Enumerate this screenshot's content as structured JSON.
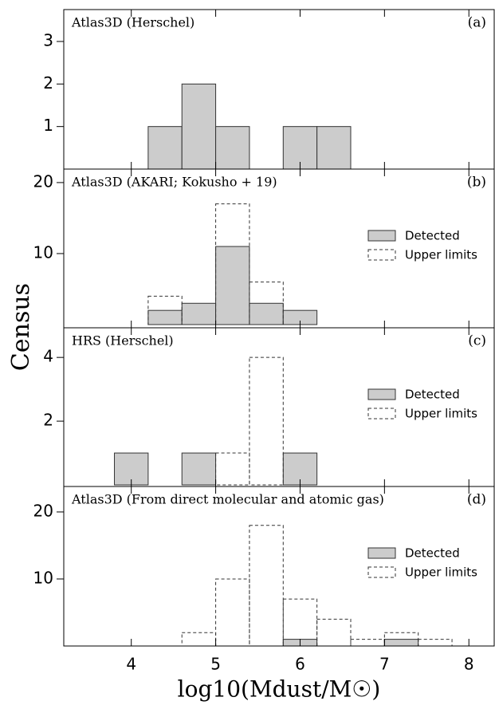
{
  "axis_labels": {
    "x": "log10(Mdust/M☉)",
    "y": "Census"
  },
  "chart_data": [
    {
      "type": "histogram",
      "title": "Atlas3D (Herschel)",
      "panel": "(a)",
      "bins": [
        4.2,
        4.6,
        5.0,
        5.4,
        5.8,
        6.2,
        6.6
      ],
      "series": [
        {
          "name": "Detected",
          "color": "#cccccc",
          "values": [
            1,
            2,
            1,
            0,
            1,
            1
          ]
        }
      ],
      "xlim": [
        3.2,
        8.3
      ],
      "xticks": [
        4,
        5,
        6,
        7,
        8
      ],
      "ylim": [
        0,
        3.75
      ],
      "yticks": [
        1,
        2,
        3
      ],
      "legend": "none"
    },
    {
      "type": "histogram",
      "title": "Atlas3D (AKARI; Kokusho + 19)",
      "panel": "(b)",
      "bins": [
        4.2,
        4.6,
        5.0,
        5.4,
        5.8,
        6.2
      ],
      "series": [
        {
          "name": "Detected",
          "color": "#cccccc",
          "values": [
            2,
            3,
            11,
            3,
            2
          ]
        },
        {
          "name": "Upper limits",
          "color": "#333333",
          "linestyle": "dashed",
          "values": [
            4,
            0,
            17,
            6,
            0
          ]
        }
      ],
      "xlim": [
        3.2,
        8.3
      ],
      "xticks": [
        4,
        5,
        6,
        7,
        8
      ],
      "ylim": [
        -0.45,
        21.9
      ],
      "yticks": [
        10,
        20
      ],
      "legend": "right"
    },
    {
      "type": "histogram",
      "title": "HRS (Herschel)",
      "panel": "(c)",
      "bins": [
        3.8,
        4.2,
        4.6,
        5.0,
        5.4,
        5.8,
        6.2
      ],
      "series": [
        {
          "name": "Detected",
          "color": "#cccccc",
          "values": [
            1,
            0,
            1,
            0,
            0,
            1
          ]
        },
        {
          "name": "Upper limits",
          "color": "#333333",
          "linestyle": "dashed",
          "values": [
            0,
            0,
            0,
            1,
            4,
            0
          ]
        }
      ],
      "xlim": [
        3.2,
        8.3
      ],
      "xticks": [
        4,
        5,
        6,
        7,
        8
      ],
      "ylim": [
        -0.05,
        4.93
      ],
      "yticks": [
        2,
        4
      ],
      "legend": "right"
    },
    {
      "type": "histogram",
      "title": "Atlas3D (From direct molecular and atomic gas)",
      "panel": "(d)",
      "bins": [
        4.6,
        5.0,
        5.4,
        5.8,
        6.2,
        6.6,
        7.0,
        7.4,
        7.8
      ],
      "series": [
        {
          "name": "Detected",
          "color": "#cccccc",
          "values": [
            0,
            0,
            0,
            1,
            0,
            0,
            1,
            0
          ]
        },
        {
          "name": "Upper limits",
          "color": "#333333",
          "linestyle": "dashed",
          "values": [
            2,
            10,
            18,
            7,
            4,
            1,
            2,
            1
          ]
        }
      ],
      "xlim": [
        3.2,
        8.3
      ],
      "xticks": [
        4,
        5,
        6,
        7,
        8
      ],
      "ylim": [
        0,
        23.8
      ],
      "yticks": [
        10,
        20
      ],
      "legend": "right"
    }
  ]
}
